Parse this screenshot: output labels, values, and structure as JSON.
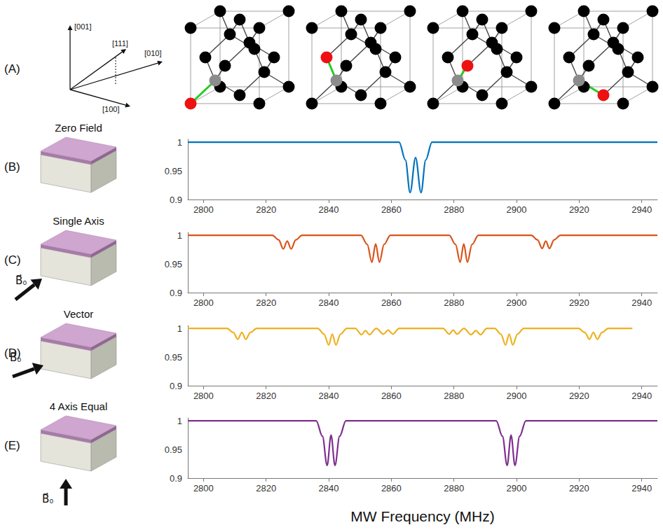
{
  "panel_a": {
    "label": "(A)",
    "axis_labels": [
      "[001]",
      "[111]",
      "[010]",
      "[100]"
    ]
  },
  "chart_data": [
    {
      "type": "line",
      "panel": "(B)",
      "title": "Zero Field",
      "color": "#0072bd",
      "xlim": [
        2795,
        2945
      ],
      "xticks": [
        2800,
        2820,
        2840,
        2860,
        2880,
        2900,
        2920,
        2940
      ],
      "ylim": [
        0.9,
        1.005
      ],
      "yticks": [
        0.9,
        0.95,
        1
      ],
      "x": [
        2795,
        2862.5,
        2864.5,
        2866,
        2867.75,
        2869.5,
        2871,
        2873,
        2945
      ],
      "values": [
        1,
        1,
        0.969,
        0.912,
        0.973,
        0.912,
        0.969,
        1,
        1
      ]
    },
    {
      "type": "line",
      "panel": "(C)",
      "title": "Single Axis",
      "field_label": "B⃗₀",
      "color": "#d95319",
      "xlim": [
        2795,
        2945
      ],
      "xticks": [
        2800,
        2820,
        2840,
        2860,
        2880,
        2900,
        2920,
        2940
      ],
      "ylim": [
        0.9,
        1.005
      ],
      "yticks": [
        0.9,
        0.95,
        1
      ],
      "x": [
        2795,
        2822,
        2824,
        2825.5,
        2826.75,
        2828,
        2829.5,
        2831.5,
        2850.3,
        2852.3,
        2853.8,
        2855,
        2856.2,
        2857.7,
        2859.7,
        2878.5,
        2880.5,
        2882,
        2883.15,
        2884.3,
        2885.8,
        2887.8,
        2904.7,
        2906.7,
        2908.2,
        2909.35,
        2910.5,
        2912,
        2914,
        2945
      ],
      "values": [
        1,
        1,
        0.992,
        0.976,
        0.99,
        0.976,
        0.992,
        1,
        1,
        0.984,
        0.953,
        0.985,
        0.953,
        0.984,
        1,
        1,
        0.984,
        0.953,
        0.985,
        0.953,
        0.984,
        1,
        1,
        0.992,
        0.977,
        0.99,
        0.977,
        0.992,
        1,
        1
      ]
    },
    {
      "type": "line",
      "panel": "(D)",
      "title": "Vector",
      "field_label": "B⃗₀",
      "color": "#edb120",
      "xlim": [
        2795,
        2945
      ],
      "xticks": [
        2800,
        2820,
        2840,
        2860,
        2880,
        2900,
        2920,
        2940
      ],
      "ylim": [
        0.9,
        1.005
      ],
      "yticks": [
        0.9,
        0.95,
        1
      ],
      "x": [
        2795,
        2807.5,
        2809.5,
        2811,
        2812.25,
        2813.5,
        2815,
        2817,
        2836.5,
        2838.5,
        2840,
        2841.15,
        2842.3,
        2843.8,
        2845.8,
        2848.5,
        2850.5,
        2851.75,
        2853,
        2855.2,
        2857.5,
        2859,
        2860.5,
        2862.5,
        2876.5,
        2878.5,
        2879.75,
        2881,
        2883.2,
        2885.5,
        2887,
        2888.5,
        2890.5,
        2893,
        2895,
        2896.5,
        2897.65,
        2898.8,
        2900.3,
        2902.3,
        2919.8,
        2921.8,
        2923.3,
        2924.55,
        2925.8,
        2927.3,
        2929.3,
        2937
      ],
      "values": [
        1,
        1,
        0.993,
        0.981,
        0.993,
        0.981,
        0.993,
        1,
        1,
        0.99,
        0.971,
        0.99,
        0.971,
        0.99,
        1,
        1,
        0.989,
        0.996,
        0.989,
        1,
        0.99,
        0.997,
        0.99,
        1,
        1,
        0.99,
        0.997,
        0.99,
        1,
        0.989,
        0.996,
        0.989,
        1,
        1,
        0.99,
        0.971,
        0.99,
        0.971,
        0.99,
        1,
        1,
        0.993,
        0.981,
        0.993,
        0.981,
        0.993,
        1,
        1
      ]
    },
    {
      "type": "line",
      "panel": "(E)",
      "title": "4 Axis Equal",
      "field_label": "B⃗₀",
      "color": "#7e2f8e",
      "xlabel": "MW Frequency (MHz)",
      "xlim": [
        2795,
        2945
      ],
      "xticks": [
        2800,
        2820,
        2840,
        2860,
        2880,
        2900,
        2920,
        2940
      ],
      "ylim": [
        0.9,
        1.005
      ],
      "yticks": [
        0.9,
        0.95,
        1
      ],
      "x": [
        2795,
        2836,
        2838,
        2839.5,
        2840.75,
        2842,
        2843.5,
        2845.5,
        2893.5,
        2895.5,
        2897,
        2898.25,
        2899.5,
        2901,
        2903,
        2945
      ],
      "values": [
        1,
        1,
        0.973,
        0.922,
        0.975,
        0.922,
        0.973,
        1,
        1,
        0.973,
        0.922,
        0.975,
        0.922,
        0.973,
        1,
        1
      ]
    }
  ]
}
